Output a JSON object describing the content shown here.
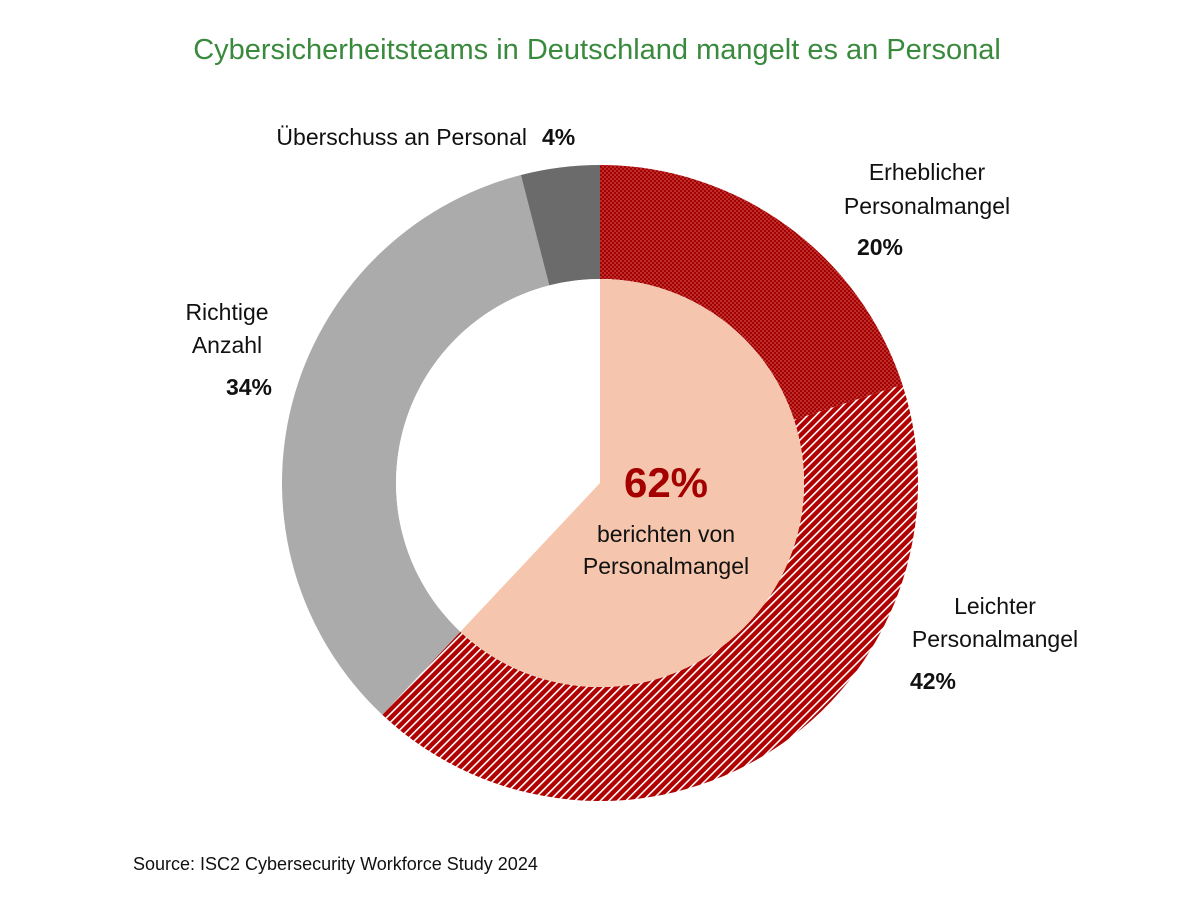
{
  "colors": {
    "title": "#3a8a3e",
    "center_value": "#a50000",
    "inner_pie": "#f5c6ad",
    "center_hole": "#ffffff"
  },
  "chart_data": {
    "type": "pie",
    "style": "donut",
    "title": "Cybersicherheitsteams in Deutschland mangelt es an Personal",
    "slices": [
      {
        "label_lines": [
          "Erheblicher",
          "Personalmangel"
        ],
        "value": 20,
        "value_label": "20%",
        "color": "#b00000",
        "fill_pattern": "dotted"
      },
      {
        "label_lines": [
          "Leichter",
          "Personalmangel"
        ],
        "value": 42,
        "value_label": "42%",
        "color": "#b00000",
        "fill_pattern": "diagonal-stripes"
      },
      {
        "label_lines": [
          "Richtige",
          "Anzahl"
        ],
        "value": 34,
        "value_label": "34%",
        "color": "#ababab",
        "fill_pattern": "solid"
      },
      {
        "label_lines": [
          "Überschuss an Personal"
        ],
        "value": 4,
        "value_label": "4%",
        "color": "#6b6b6b",
        "fill_pattern": "solid"
      }
    ],
    "center": {
      "value": 62,
      "value_label": "62%",
      "text_lines": [
        "berichten von",
        "Personalmangel"
      ]
    }
  },
  "source": "Source: ISC2 Cybersecurity Workforce Study 2024"
}
